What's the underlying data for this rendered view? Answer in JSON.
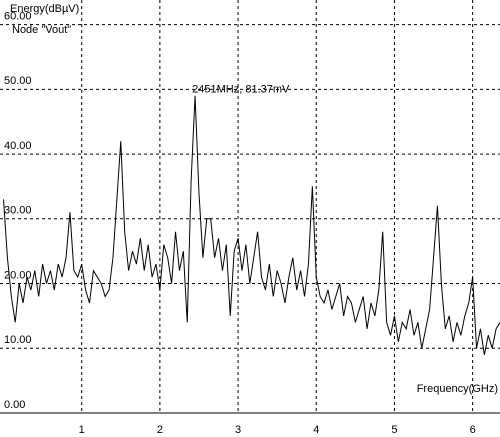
{
  "chart_data": {
    "type": "line",
    "y_label": "Energy(dBµV)",
    "subtitle": "Node \"Vout\"",
    "x_label": "Frequency(GHz)",
    "annotation": {
      "text": "2451MHz, 81.37mV",
      "x": 2.451,
      "y": 49
    },
    "xlim": [
      0,
      6.35
    ],
    "ylim": [
      0,
      63.8
    ],
    "xticks": [
      1,
      2,
      3,
      4,
      5,
      6
    ],
    "yticks": [
      {
        "value": 0,
        "label": "0.00"
      },
      {
        "value": 10,
        "label": "10.00"
      },
      {
        "value": 20,
        "label": "20.00"
      },
      {
        "value": 30,
        "label": "30.00"
      },
      {
        "value": 40,
        "label": "40.00"
      },
      {
        "value": 50,
        "label": "50.00"
      },
      {
        "value": 60,
        "label": "60.00"
      }
    ],
    "grid": true,
    "x": [
      0,
      0.05,
      0.1,
      0.15,
      0.2,
      0.25,
      0.3,
      0.35,
      0.4,
      0.45,
      0.5,
      0.55,
      0.6,
      0.65,
      0.7,
      0.75,
      0.8,
      0.85,
      0.9,
      0.95,
      1,
      1.05,
      1.1,
      1.15,
      1.2,
      1.25,
      1.3,
      1.35,
      1.4,
      1.45,
      1.5,
      1.55,
      1.6,
      1.65,
      1.7,
      1.75,
      1.8,
      1.85,
      1.9,
      1.95,
      2,
      2.05,
      2.1,
      2.15,
      2.2,
      2.25,
      2.3,
      2.35,
      2.4,
      2.45,
      2.5,
      2.55,
      2.6,
      2.65,
      2.7,
      2.75,
      2.8,
      2.85,
      2.9,
      2.95,
      3,
      3.05,
      3.1,
      3.15,
      3.2,
      3.25,
      3.3,
      3.35,
      3.4,
      3.45,
      3.5,
      3.55,
      3.6,
      3.65,
      3.7,
      3.75,
      3.8,
      3.85,
      3.9,
      3.95,
      4,
      4.05,
      4.1,
      4.15,
      4.2,
      4.25,
      4.3,
      4.35,
      4.4,
      4.45,
      4.5,
      4.55,
      4.6,
      4.65,
      4.7,
      4.75,
      4.8,
      4.85,
      4.9,
      4.95,
      5,
      5.05,
      5.1,
      5.15,
      5.2,
      5.25,
      5.3,
      5.35,
      5.4,
      5.45,
      5.5,
      5.55,
      5.6,
      5.65,
      5.7,
      5.75,
      5.8,
      5.85,
      5.9,
      5.95,
      6,
      6.05,
      6.1,
      6.15,
      6.2,
      6.25,
      6.3,
      6.35
    ],
    "series": [
      {
        "color": "#000000",
        "values": [
          33,
          24,
          18,
          14,
          20,
          17,
          21,
          19,
          22,
          18,
          23,
          20,
          22,
          19,
          23,
          21,
          24,
          31,
          22,
          21,
          23,
          19,
          17,
          22,
          21,
          20,
          18,
          19,
          24,
          33,
          42,
          28,
          22,
          25,
          23,
          27,
          22,
          26,
          21,
          23,
          19,
          26,
          24,
          20,
          28,
          22,
          25,
          14,
          36,
          49,
          34,
          24,
          30,
          30,
          24,
          27,
          22,
          26,
          15,
          25,
          27,
          22,
          26,
          20,
          24,
          28,
          21,
          19,
          23,
          18,
          22,
          20,
          17,
          21,
          24,
          19,
          22,
          18,
          23,
          35,
          21,
          18,
          17,
          19,
          16,
          18,
          20,
          15,
          18,
          17,
          14,
          16,
          18,
          13,
          17,
          15,
          19,
          28,
          14,
          12,
          15,
          11,
          14,
          13,
          16,
          12,
          14,
          10,
          13,
          16,
          24,
          32,
          20,
          13,
          15,
          11,
          14,
          12,
          15,
          17,
          21,
          10,
          13,
          9,
          12,
          10,
          13,
          14
        ]
      }
    ]
  }
}
